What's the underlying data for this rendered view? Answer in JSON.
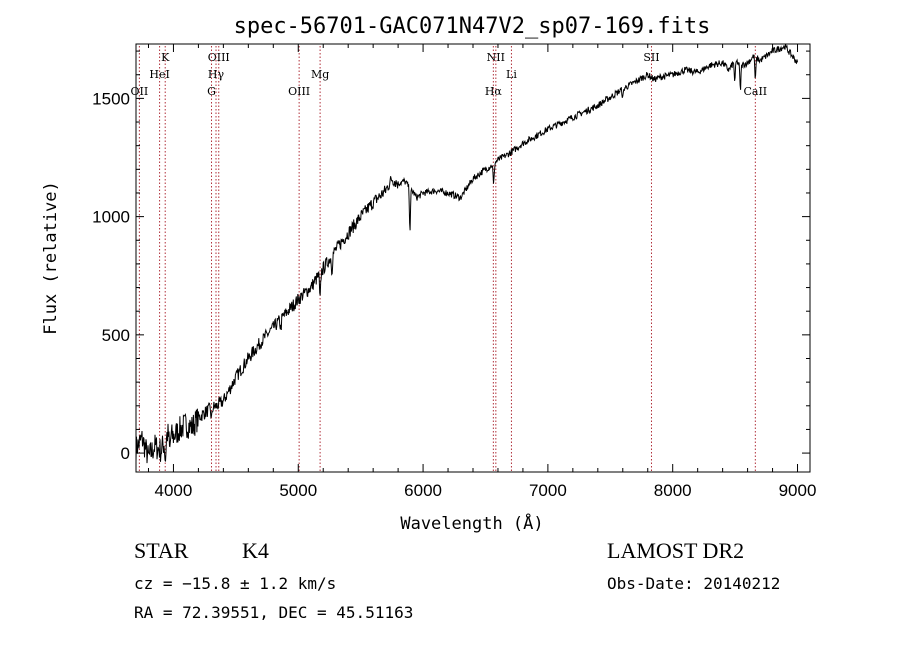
{
  "chart_data": {
    "type": "line",
    "title": "spec-56701-GAC071N47V2_sp07-169.fits",
    "xlabel": "Wavelength (Å)",
    "ylabel": "Flux (relative)",
    "xlim": [
      3700,
      9100
    ],
    "ylim": [
      -80,
      1730
    ],
    "xticks": [
      4000,
      5000,
      6000,
      7000,
      8000,
      9000
    ],
    "yticks": [
      0,
      500,
      1000,
      1500
    ],
    "grid": false,
    "series": [
      {
        "x": [
          3700,
          3750,
          3800,
          3850,
          3900,
          3950,
          4000,
          4050,
          4100,
          4150,
          4200,
          4250,
          4300,
          4350,
          4400,
          4450,
          4500,
          4600,
          4700,
          4800,
          4900,
          5000,
          5100,
          5200,
          5300,
          5400,
          5500,
          5600,
          5700,
          5750,
          5800,
          5850,
          5900,
          5950,
          6000,
          6100,
          6200,
          6300,
          6400,
          6500,
          6560,
          6600,
          6700,
          6800,
          6900,
          7000,
          7200,
          7400,
          7600,
          7700,
          7800,
          7850,
          7900,
          8000,
          8100,
          8200,
          8300,
          8400,
          8450,
          8500,
          8550,
          8600,
          8650,
          8700,
          8800,
          8900,
          9000
        ],
        "y": [
          20,
          60,
          -20,
          30,
          10,
          80,
          70,
          100,
          120,
          110,
          150,
          170,
          190,
          200,
          220,
          270,
          320,
          400,
          470,
          530,
          590,
          650,
          700,
          780,
          860,
          930,
          1000,
          1060,
          1110,
          1160,
          1140,
          1150,
          1120,
          1080,
          1100,
          1110,
          1100,
          1080,
          1160,
          1200,
          1220,
          1240,
          1270,
          1310,
          1340,
          1370,
          1420,
          1470,
          1540,
          1570,
          1600,
          1580,
          1590,
          1600,
          1620,
          1610,
          1640,
          1650,
          1620,
          1660,
          1640,
          1650,
          1680,
          1660,
          1700,
          1720,
          1650
        ],
        "features": [
          {
            "x": 3935,
            "depth": 90
          },
          {
            "x": 3970,
            "depth": 70
          },
          {
            "x": 4305,
            "depth": 50
          },
          {
            "x": 4860,
            "depth": 40
          },
          {
            "x": 5175,
            "depth": 120
          },
          {
            "x": 5270,
            "depth": 60
          },
          {
            "x": 5895,
            "depth": 180
          },
          {
            "x": 6565,
            "depth": 90
          },
          {
            "x": 7600,
            "depth": 40
          },
          {
            "x": 8498,
            "depth": 90
          },
          {
            "x": 8542,
            "depth": 110
          },
          {
            "x": 8662,
            "depth": 100
          }
        ]
      }
    ],
    "spectral_lines": [
      {
        "label": "OII",
        "x": 3727,
        "row": 3
      },
      {
        "label": "K",
        "x": 3934,
        "row": 1
      },
      {
        "label": "HeI",
        "x": 3889,
        "row": 2
      },
      {
        "label": "OIII",
        "x": 4363,
        "row": 1
      },
      {
        "label": "Hγ",
        "x": 4341,
        "row": 2
      },
      {
        "label": "G",
        "x": 4305,
        "row": 3
      },
      {
        "label": "OIII",
        "x": 5007,
        "row": 3
      },
      {
        "label": "Mg",
        "x": 5175,
        "row": 2
      },
      {
        "label": "NII",
        "x": 6583,
        "row": 1
      },
      {
        "label": "Hα",
        "x": 6563,
        "row": 3
      },
      {
        "label": "Li",
        "x": 6708,
        "row": 2
      },
      {
        "label": "SII",
        "x": 7830,
        "row": 1
      },
      {
        "label": "CaII",
        "x": 8662,
        "row": 3
      }
    ]
  },
  "info": {
    "object_class": "STAR",
    "subclass": "K4",
    "survey": "LAMOST DR2",
    "cz": "cz = −15.8 ± 1.2 km/s",
    "obs_date": "Obs-Date: 20140212",
    "coords": "RA =  72.39551, DEC =  45.51163"
  }
}
